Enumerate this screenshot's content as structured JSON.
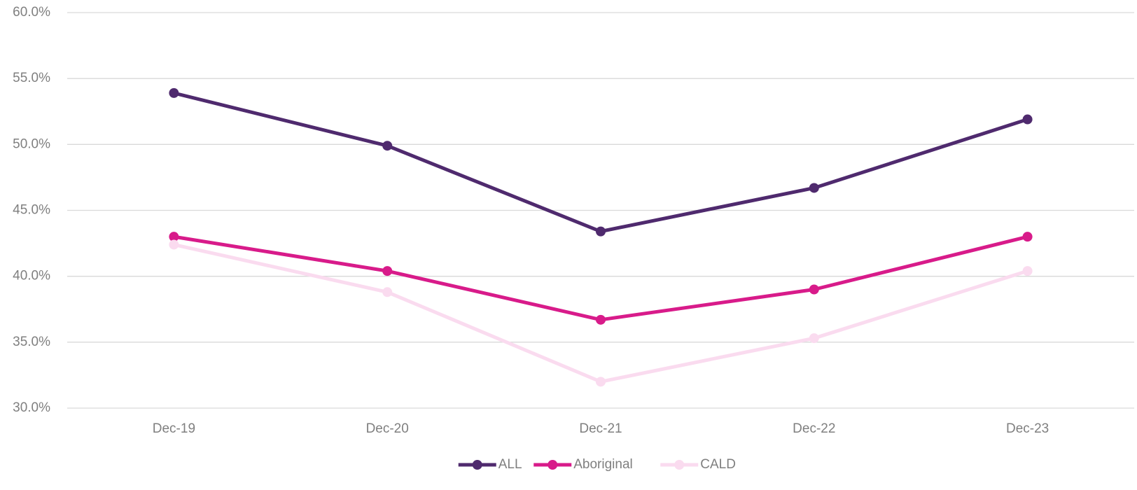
{
  "chart_data": {
    "type": "line",
    "categories": [
      "Dec-19",
      "Dec-20",
      "Dec-21",
      "Dec-22",
      "Dec-23"
    ],
    "series": [
      {
        "name": "ALL",
        "color": "#4f2a6e",
        "values": [
          53.9,
          49.9,
          43.4,
          46.7,
          51.9
        ]
      },
      {
        "name": "Aboriginal",
        "color": "#d81b8a",
        "values": [
          43.0,
          40.4,
          36.7,
          39.0,
          43.0
        ]
      },
      {
        "name": "CALD",
        "color": "#fadbef",
        "values": [
          42.4,
          38.8,
          32.0,
          35.3,
          40.4
        ]
      }
    ],
    "ylim": [
      30,
      60
    ],
    "yticks": [
      {
        "value": 30,
        "label": "30.0%"
      },
      {
        "value": 35,
        "label": "35.0%"
      },
      {
        "value": 40,
        "label": "40.0%"
      },
      {
        "value": 45,
        "label": "45.0%"
      },
      {
        "value": 50,
        "label": "50.0%"
      },
      {
        "value": 55,
        "label": "55.0%"
      },
      {
        "value": 60,
        "label": "60.0%"
      }
    ],
    "grid": true,
    "legend": "bottom"
  }
}
